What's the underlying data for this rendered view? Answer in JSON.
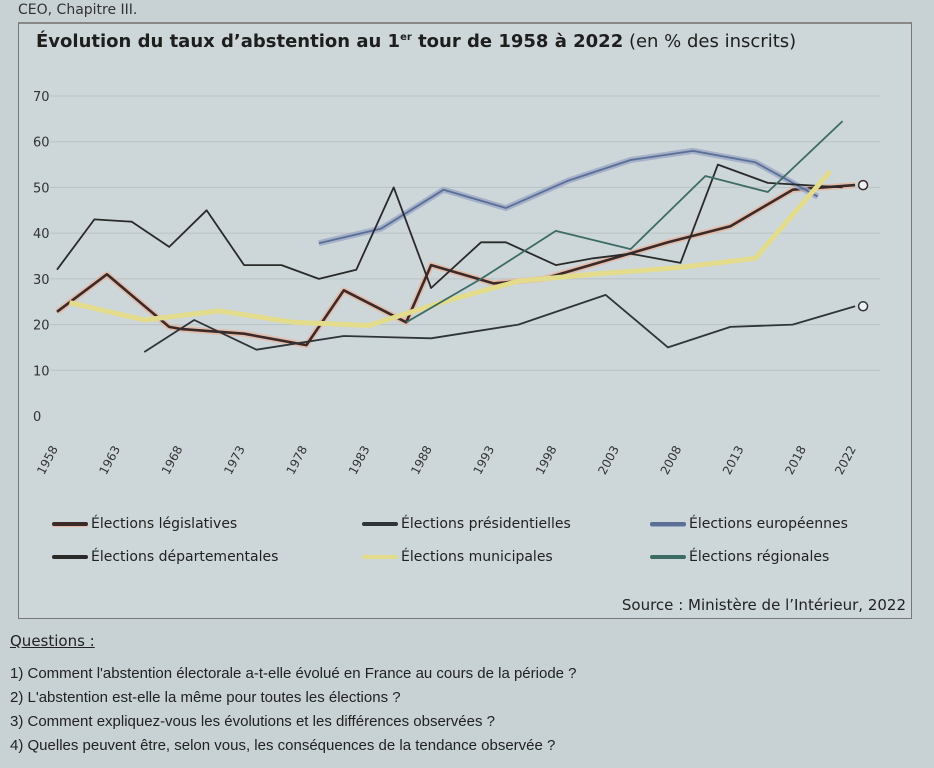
{
  "header_caption": "CEO, Chapitre III.",
  "chart_data": {
    "type": "line",
    "title_main": "Évolution du taux d’abstention au 1",
    "title_sup": "er",
    "title_rest": " tour de 1958 à 2022",
    "title_unit": " (en % des inscrits)",
    "xlabel": "",
    "ylabel": "",
    "ylim": [
      0,
      70
    ],
    "yticks": [
      "0",
      "10",
      "20",
      "30",
      "40",
      "50",
      "60",
      "70"
    ],
    "xticks": [
      "1958",
      "1963",
      "1968",
      "1973",
      "1978",
      "1983",
      "1988",
      "1993",
      "1998",
      "2003",
      "2008",
      "2013",
      "2018",
      "2022"
    ],
    "grid": true,
    "legend_position": "bottom",
    "series": [
      {
        "name": "Élections législatives",
        "color": "#3a2a28",
        "halo": "#e7b5a0",
        "x": [
          1958,
          1962,
          1967,
          1968,
          1973,
          1978,
          1981,
          1986,
          1988,
          1993,
          1997,
          2002,
          2007,
          2012,
          2017,
          2022
        ],
        "y": [
          22.8,
          31,
          19.5,
          19,
          18,
          15.5,
          27.5,
          20.5,
          33,
          29,
          30,
          34,
          38,
          41.5,
          49.5,
          50.5
        ]
      },
      {
        "name": "Élections présidentielles",
        "color": "#2f3438",
        "halo": null,
        "x": [
          1965,
          1969,
          1974,
          1981,
          1988,
          1995,
          2002,
          2007,
          2012,
          2017,
          2022
        ],
        "y": [
          14,
          21,
          14.5,
          17.5,
          17,
          20,
          26.5,
          15,
          19.5,
          20,
          24
        ]
      },
      {
        "name": "Élections européennes",
        "color": "#5b6e96",
        "halo": "#9aa8c4",
        "x": [
          1979,
          1984,
          1989,
          1994,
          1999,
          2004,
          2009,
          2014,
          2019
        ],
        "y": [
          37.8,
          41,
          49.5,
          45.5,
          51.5,
          56,
          58,
          55.5,
          48
        ]
      },
      {
        "name": "Élections départementales",
        "color": "#2a2a2a",
        "halo": null,
        "x": [
          1958,
          1961,
          1964,
          1967,
          1970,
          1973,
          1976,
          1979,
          1982,
          1985,
          1988,
          1992,
          1994,
          1998,
          2001,
          2004,
          2008,
          2011,
          2015,
          2021
        ],
        "y": [
          32,
          43,
          42.5,
          37,
          45,
          33,
          33,
          30,
          32,
          50,
          28,
          38,
          38,
          33,
          34.5,
          35.5,
          33.5,
          55,
          51,
          50
        ]
      },
      {
        "name": "Élections municipales",
        "color": "#e3dc8c",
        "halo": null,
        "x": [
          1959,
          1965,
          1971,
          1977,
          1983,
          1989,
          1995,
          2001,
          2008,
          2014,
          2020
        ],
        "y": [
          24.8,
          21,
          23,
          20.5,
          19.8,
          25,
          29.5,
          31,
          32.5,
          34.5,
          53.5
        ]
      },
      {
        "name": "Élections régionales",
        "color": "#3d6b66",
        "halo": null,
        "x": [
          1986,
          1992,
          1998,
          2004,
          2010,
          2015,
          2021
        ],
        "y": [
          20.5,
          30,
          40.5,
          36.5,
          52.5,
          49,
          64.5
        ]
      }
    ],
    "end_markers": [
      "Élections législatives",
      "Élections présidentielles"
    ],
    "source_label": "Source",
    "source_text": " : Ministère de l’Intérieur, 2022"
  },
  "questions": {
    "title": "Questions :",
    "items": [
      "1) Comment l'abstention électorale a-t-elle évolué en France au cours de la période ?",
      "2) L'abstention est-elle la même pour toutes les élections ?",
      "3) Comment expliquez-vous les évolutions et les différences observées ?",
      "4) Quelles peuvent être, selon vous, les conséquences de la tendance observée ?"
    ]
  }
}
